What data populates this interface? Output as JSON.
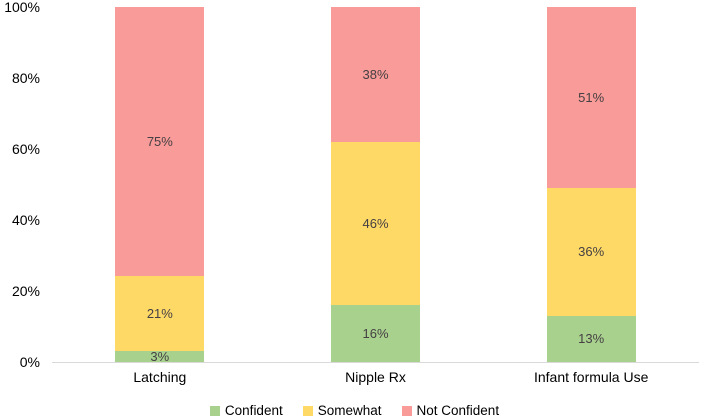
{
  "chart_data": {
    "type": "bar",
    "subtype": "stacked-100-percent",
    "title": "",
    "xlabel": "",
    "ylabel": "",
    "categories": [
      "Latching",
      "Nipple Rx",
      "Infant formula Use"
    ],
    "series": [
      {
        "name": "Confident",
        "color": "#A9D18E",
        "values": [
          3,
          16,
          13
        ],
        "labels": [
          "3%",
          "16%",
          "13%"
        ]
      },
      {
        "name": "Somewhat",
        "color": "#FFD966",
        "values": [
          21,
          46,
          36
        ],
        "labels": [
          "21%",
          "46%",
          "36%"
        ]
      },
      {
        "name": "Not Confident",
        "color": "#F99B98",
        "values": [
          75,
          38,
          51
        ],
        "labels": [
          "75%",
          "38%",
          "51%"
        ]
      }
    ],
    "ylim": [
      0,
      100
    ],
    "y_ticks": [
      "100%",
      "80%",
      "60%",
      "40%",
      "20%",
      "0%"
    ],
    "grid": false,
    "legend_position": "bottom",
    "axis_line_color": "#D9D9D9",
    "data_label_color": "#454043",
    "tick_label_color": "#000000",
    "background": "#FFFFFF"
  }
}
